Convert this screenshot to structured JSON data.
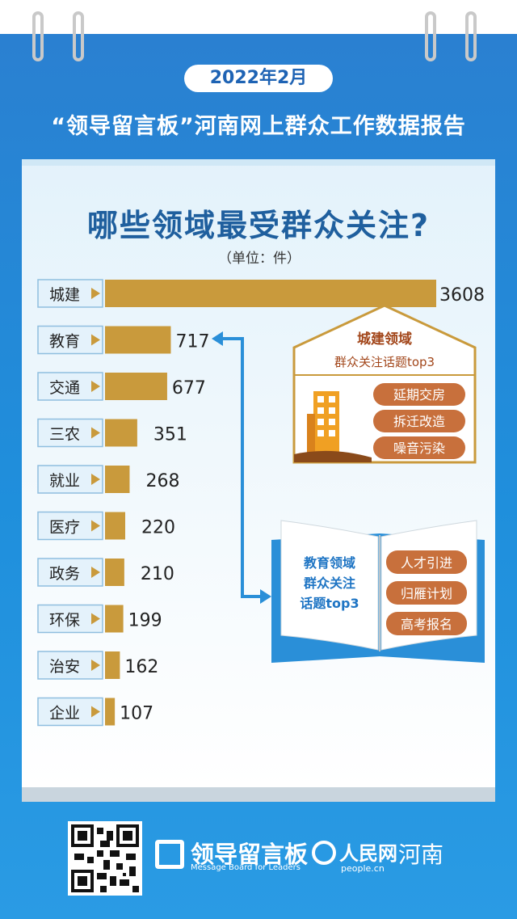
{
  "header": {
    "date": "2022年2月",
    "report_title": "“领导留言板”河南网上群众工作数据报告"
  },
  "chart_data": {
    "type": "bar",
    "title": "哪些领域最受群众关注?",
    "unit": "（单位：件）",
    "categories": [
      "城建",
      "教育",
      "交通",
      "三农",
      "就业",
      "医疗",
      "政务",
      "环保",
      "治安",
      "企业"
    ],
    "values": [
      3608,
      717,
      677,
      351,
      268,
      220,
      210,
      199,
      162,
      107
    ],
    "bar_color": "#c99a3c",
    "label_box_color": "#e4f2fb",
    "label_box_border": "#8fbedf"
  },
  "callouts": {
    "urban": {
      "title": "城建领域",
      "subtitle": "群众关注话题top3",
      "topics": [
        "延期交房",
        "拆迁改造",
        "噪音污染"
      ]
    },
    "education": {
      "lines": [
        "教育领域",
        "群众关注",
        "话题top3"
      ],
      "topics": [
        "人才引进",
        "归雁计划",
        "高考报名"
      ]
    }
  },
  "footer": {
    "logo_name": "领导留言板",
    "logo_sub": "Message Board for Leaders",
    "people_name": "人民网",
    "people_sub": "people.cn",
    "region": "河南"
  },
  "icons": [
    "qr-code-icon",
    "message-board-logo-icon",
    "people-logo-icon",
    "building-icon",
    "open-book-icon"
  ]
}
